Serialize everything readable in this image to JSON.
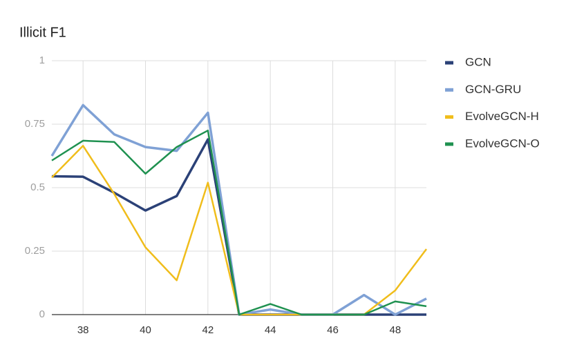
{
  "chart_data": {
    "type": "line",
    "title": "Illicit F1",
    "x": [
      37,
      38,
      39,
      40,
      41,
      42,
      43,
      44,
      45,
      46,
      47,
      48,
      49
    ],
    "series": [
      {
        "name": "GCN",
        "color": "#2b4177",
        "values": [
          0.545,
          0.543,
          0.48,
          0.41,
          0.467,
          0.69,
          0,
          0,
          0,
          0,
          0,
          0,
          0
        ]
      },
      {
        "name": "GCN-GRU",
        "color": "#7fa1d5",
        "values": [
          0.625,
          0.825,
          0.71,
          0.66,
          0.645,
          0.795,
          0,
          0.02,
          0,
          0,
          0.077,
          0,
          0.063
        ]
      },
      {
        "name": "EvolveGCN-H",
        "color": "#f0bd1b",
        "values": [
          0.54,
          0.665,
          0.475,
          0.265,
          0.135,
          0.52,
          0,
          0,
          0,
          0,
          0,
          0.095,
          0.258
        ]
      },
      {
        "name": "EvolveGCN-O",
        "color": "#1f9150",
        "values": [
          0.607,
          0.685,
          0.68,
          0.555,
          0.66,
          0.725,
          0,
          0.042,
          0,
          0,
          0,
          0.052,
          0.033
        ]
      }
    ],
    "xlim": [
      37,
      49
    ],
    "xticks": [
      38,
      40,
      42,
      44,
      46,
      48
    ],
    "ylim": [
      0,
      1
    ],
    "yticks": [
      0,
      0.25,
      0.5,
      0.75,
      1
    ],
    "grid": true,
    "legend": "right"
  }
}
